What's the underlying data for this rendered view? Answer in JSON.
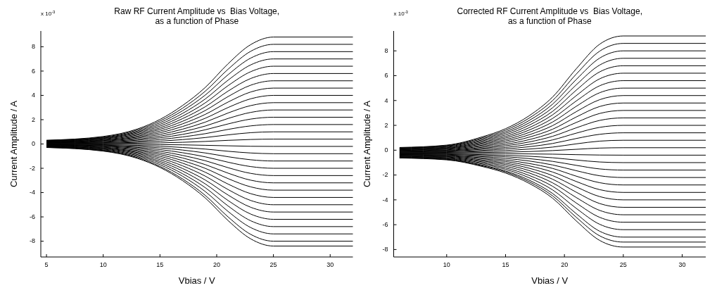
{
  "chart_data": [
    {
      "type": "line",
      "title": "Raw RF Current Amplitude vs  Bias Voltage,\nas a function of Phase",
      "xlabel": "Vbias / V",
      "ylabel": "Current Amplitude / A",
      "annotations": [
        "x 10$^{-3}$"
      ],
      "xlim": [
        4.5,
        32
      ],
      "ylim": [
        -9.3,
        9.3
      ],
      "xticks": [
        5,
        10,
        15,
        20,
        25,
        30
      ],
      "yticks": [
        -8,
        -6,
        -4,
        -2,
        0,
        2,
        4,
        6,
        8
      ],
      "line_style": "solid",
      "x": [
        5,
        10,
        13,
        15,
        17,
        19,
        21,
        23,
        25,
        32
      ],
      "series": [
        {
          "color": "#000000",
          "values": [
            0.31,
            0.62,
            1.23,
            2.02,
            3.17,
            4.66,
            6.6,
            8.18,
            8.8,
            8.8
          ]
        },
        {
          "color": "#000000",
          "values": [
            0.29,
            0.57,
            1.15,
            1.89,
            2.95,
            4.35,
            6.15,
            7.63,
            8.2,
            8.2
          ]
        },
        {
          "color": "#000000",
          "values": [
            0.27,
            0.53,
            1.06,
            1.75,
            2.74,
            4.03,
            5.7,
            7.07,
            7.6,
            7.6
          ]
        },
        {
          "color": "#000000",
          "values": [
            0.25,
            0.49,
            0.98,
            1.61,
            2.52,
            3.71,
            5.25,
            6.51,
            7.0,
            7.0
          ]
        },
        {
          "color": "#000000",
          "values": [
            0.22,
            0.45,
            0.9,
            1.47,
            2.3,
            3.39,
            4.8,
            5.95,
            6.4,
            6.4
          ]
        },
        {
          "color": "#000000",
          "values": [
            0.2,
            0.41,
            0.81,
            1.33,
            2.09,
            3.07,
            4.35,
            5.39,
            5.8,
            5.8
          ]
        },
        {
          "color": "#000000",
          "values": [
            0.18,
            0.36,
            0.73,
            1.2,
            1.87,
            2.76,
            3.9,
            4.84,
            5.2,
            5.2
          ]
        },
        {
          "color": "#000000",
          "values": [
            0.16,
            0.32,
            0.64,
            1.06,
            1.66,
            2.44,
            3.45,
            4.28,
            4.6,
            4.6
          ]
        },
        {
          "color": "#000000",
          "values": [
            0.14,
            0.28,
            0.56,
            0.92,
            1.44,
            2.12,
            3.0,
            3.72,
            4.0,
            4.0
          ]
        },
        {
          "color": "#000000",
          "values": [
            0.12,
            0.24,
            0.48,
            0.78,
            1.22,
            1.8,
            2.55,
            3.16,
            3.4,
            3.4
          ]
        },
        {
          "color": "#000000",
          "values": [
            0.1,
            0.2,
            0.39,
            0.64,
            1.01,
            1.48,
            2.1,
            2.6,
            2.8,
            2.8
          ]
        },
        {
          "color": "#000000",
          "values": [
            0.08,
            0.15,
            0.31,
            0.51,
            0.79,
            1.17,
            1.65,
            2.05,
            2.2,
            2.2
          ]
        },
        {
          "color": "#000000",
          "values": [
            0.06,
            0.11,
            0.22,
            0.37,
            0.58,
            0.85,
            1.2,
            1.49,
            1.6,
            1.6
          ]
        },
        {
          "color": "#000000",
          "values": [
            0.04,
            0.07,
            0.14,
            0.23,
            0.36,
            0.53,
            0.75,
            0.93,
            1.0,
            1.0
          ]
        },
        {
          "color": "#000000",
          "values": [
            0.01,
            0.03,
            0.06,
            0.09,
            0.14,
            0.21,
            0.3,
            0.37,
            0.4,
            0.4
          ]
        },
        {
          "color": "#000000",
          "values": [
            -0.01,
            -0.01,
            -0.03,
            -0.05,
            -0.07,
            -0.11,
            -0.15,
            -0.19,
            -0.2,
            -0.2
          ]
        },
        {
          "color": "#000000",
          "values": [
            -0.03,
            -0.06,
            -0.11,
            -0.18,
            -0.29,
            -0.42,
            -0.6,
            -0.74,
            -0.8,
            -0.8
          ]
        },
        {
          "color": "#000000",
          "values": [
            -0.05,
            -0.1,
            -0.2,
            -0.32,
            -0.5,
            -0.74,
            -1.05,
            -1.3,
            -1.4,
            -1.4
          ]
        },
        {
          "color": "#000000",
          "values": [
            -0.07,
            -0.14,
            -0.28,
            -0.46,
            -0.72,
            -1.06,
            -1.5,
            -1.86,
            -2.0,
            -2.0
          ]
        },
        {
          "color": "#000000",
          "values": [
            -0.09,
            -0.18,
            -0.36,
            -0.6,
            -0.94,
            -1.38,
            -1.95,
            -2.42,
            -2.6,
            -2.6
          ]
        },
        {
          "color": "#000000",
          "values": [
            -0.11,
            -0.22,
            -0.45,
            -0.74,
            -1.15,
            -1.7,
            -2.4,
            -2.98,
            -3.2,
            -3.2
          ]
        },
        {
          "color": "#000000",
          "values": [
            -0.13,
            -0.27,
            -0.53,
            -0.87,
            -1.37,
            -2.01,
            -2.85,
            -3.53,
            -3.8,
            -3.8
          ]
        },
        {
          "color": "#000000",
          "values": [
            -0.15,
            -0.31,
            -0.62,
            -1.01,
            -1.58,
            -2.33,
            -3.3,
            -4.09,
            -4.4,
            -4.4
          ]
        },
        {
          "color": "#000000",
          "values": [
            -0.18,
            -0.35,
            -0.7,
            -1.15,
            -1.8,
            -2.65,
            -3.75,
            -4.65,
            -5.0,
            -5.0
          ]
        },
        {
          "color": "#000000",
          "values": [
            -0.2,
            -0.39,
            -0.78,
            -1.29,
            -2.02,
            -2.97,
            -4.2,
            -5.21,
            -5.6,
            -5.6
          ]
        },
        {
          "color": "#000000",
          "values": [
            -0.22,
            -0.43,
            -0.87,
            -1.43,
            -2.23,
            -3.29,
            -4.65,
            -5.77,
            -6.2,
            -6.2
          ]
        },
        {
          "color": "#000000",
          "values": [
            -0.24,
            -0.48,
            -0.95,
            -1.56,
            -2.45,
            -3.6,
            -5.1,
            -6.32,
            -6.8,
            -6.8
          ]
        },
        {
          "color": "#000000",
          "values": [
            -0.26,
            -0.52,
            -1.04,
            -1.7,
            -2.66,
            -3.92,
            -5.55,
            -6.88,
            -7.4,
            -7.4
          ]
        },
        {
          "color": "#000000",
          "values": [
            -0.28,
            -0.56,
            -1.12,
            -1.84,
            -2.88,
            -4.24,
            -6.0,
            -7.44,
            -8.0,
            -8.0
          ]
        },
        {
          "color": "#000000",
          "values": [
            -0.29,
            -0.59,
            -1.18,
            -1.93,
            -3.02,
            -4.45,
            -6.3,
            -7.81,
            -8.4,
            -8.4
          ]
        }
      ]
    },
    {
      "type": "line",
      "title": "Corrected RF Current Amplitude vs  Bias Voltage,\nas a function of Phase",
      "xlabel": "Vbias / V",
      "ylabel": "Current Amplitude / A",
      "annotations": [
        "x 10$^{-3}$"
      ],
      "xlim": [
        5.5,
        32
      ],
      "ylim": [
        -8.6,
        9.6
      ],
      "xticks": [
        10,
        15,
        20,
        25,
        30
      ],
      "yticks": [
        -8,
        -6,
        -4,
        -2,
        0,
        2,
        4,
        6,
        8
      ],
      "line_style": "solid",
      "x": [
        6,
        10,
        13,
        15,
        17,
        19,
        21,
        23,
        25,
        32
      ],
      "series": [
        {
          "color": "#000000",
          "values": [
            0.22,
            0.41,
            1.07,
            1.73,
            2.77,
            4.29,
            6.55,
            8.54,
            9.2,
            9.2
          ]
        },
        {
          "color": "#000000",
          "values": [
            0.19,
            0.37,
            0.99,
            1.61,
            2.58,
            4.0,
            6.12,
            7.98,
            8.6,
            8.6
          ]
        },
        {
          "color": "#000000",
          "values": [
            0.16,
            0.33,
            0.91,
            1.48,
            2.39,
            3.71,
            5.69,
            7.42,
            8.0,
            8.0
          ]
        },
        {
          "color": "#000000",
          "values": [
            0.13,
            0.29,
            0.82,
            1.36,
            2.2,
            3.42,
            5.26,
            6.86,
            7.4,
            7.4
          ]
        },
        {
          "color": "#000000",
          "values": [
            0.1,
            0.24,
            0.74,
            1.23,
            2.01,
            3.13,
            4.83,
            6.31,
            6.8,
            6.8
          ]
        },
        {
          "color": "#000000",
          "values": [
            0.07,
            0.2,
            0.65,
            1.1,
            1.81,
            2.85,
            4.39,
            5.75,
            6.2,
            6.2
          ]
        },
        {
          "color": "#000000",
          "values": [
            0.04,
            0.16,
            0.57,
            0.98,
            1.62,
            2.56,
            3.96,
            5.19,
            5.6,
            5.6
          ]
        },
        {
          "color": "#000000",
          "values": [
            0.01,
            0.12,
            0.49,
            0.85,
            1.43,
            2.27,
            3.53,
            4.63,
            5.0,
            5.0
          ]
        },
        {
          "color": "#000000",
          "values": [
            -0.02,
            0.08,
            0.4,
            0.73,
            1.24,
            1.98,
            3.1,
            4.07,
            4.4,
            4.4
          ]
        },
        {
          "color": "#000000",
          "values": [
            -0.05,
            0.03,
            0.32,
            0.6,
            1.05,
            1.69,
            2.67,
            3.52,
            3.8,
            3.8
          ]
        },
        {
          "color": "#000000",
          "values": [
            -0.08,
            -0.01,
            0.23,
            0.47,
            0.85,
            1.41,
            2.23,
            2.96,
            3.2,
            3.2
          ]
        },
        {
          "color": "#000000",
          "values": [
            -0.11,
            -0.05,
            0.15,
            0.35,
            0.66,
            1.12,
            1.8,
            2.4,
            2.6,
            2.6
          ]
        },
        {
          "color": "#000000",
          "values": [
            -0.14,
            -0.09,
            0.07,
            0.22,
            0.47,
            0.83,
            1.37,
            1.84,
            2.0,
            2.0
          ]
        },
        {
          "color": "#000000",
          "values": [
            -0.17,
            -0.13,
            -0.02,
            0.1,
            0.28,
            0.54,
            0.94,
            1.28,
            1.4,
            1.4
          ]
        },
        {
          "color": "#000000",
          "values": [
            -0.2,
            -0.18,
            -0.1,
            -0.03,
            0.09,
            0.25,
            0.51,
            0.73,
            0.8,
            0.8
          ]
        },
        {
          "color": "#000000",
          "values": [
            -0.23,
            -0.22,
            -0.19,
            -0.16,
            -0.11,
            -0.03,
            0.07,
            0.17,
            0.2,
            0.2
          ]
        },
        {
          "color": "#000000",
          "values": [
            -0.26,
            -0.26,
            -0.27,
            -0.28,
            -0.3,
            -0.32,
            -0.36,
            -0.39,
            -0.4,
            -0.4
          ]
        },
        {
          "color": "#000000",
          "values": [
            -0.29,
            -0.3,
            -0.36,
            -0.41,
            -0.49,
            -0.61,
            -0.79,
            -0.95,
            -1.0,
            -1.0
          ]
        },
        {
          "color": "#000000",
          "values": [
            -0.32,
            -0.34,
            -0.44,
            -0.53,
            -0.68,
            -0.9,
            -1.22,
            -1.51,
            -1.6,
            -1.6
          ]
        },
        {
          "color": "#000000",
          "values": [
            -0.35,
            -0.39,
            -0.52,
            -0.66,
            -0.87,
            -1.19,
            -1.65,
            -2.06,
            -2.2,
            -2.2
          ]
        },
        {
          "color": "#000000",
          "values": [
            -0.38,
            -0.43,
            -0.61,
            -0.79,
            -1.07,
            -1.47,
            -2.09,
            -2.62,
            -2.8,
            -2.8
          ]
        },
        {
          "color": "#000000",
          "values": [
            -0.41,
            -0.47,
            -0.69,
            -0.91,
            -1.26,
            -1.76,
            -2.52,
            -3.18,
            -3.4,
            -3.4
          ]
        },
        {
          "color": "#000000",
          "values": [
            -0.44,
            -0.51,
            -0.78,
            -1.04,
            -1.45,
            -2.05,
            -2.95,
            -3.74,
            -4.0,
            -4.0
          ]
        },
        {
          "color": "#000000",
          "values": [
            -0.47,
            -0.55,
            -0.86,
            -1.16,
            -1.64,
            -2.34,
            -3.38,
            -4.3,
            -4.6,
            -4.6
          ]
        },
        {
          "color": "#000000",
          "values": [
            -0.5,
            -0.6,
            -0.94,
            -1.29,
            -1.83,
            -2.63,
            -3.81,
            -4.85,
            -5.2,
            -5.2
          ]
        },
        {
          "color": "#000000",
          "values": [
            -0.53,
            -0.64,
            -1.03,
            -1.42,
            -2.03,
            -2.91,
            -4.25,
            -5.41,
            -5.8,
            -5.8
          ]
        },
        {
          "color": "#000000",
          "values": [
            -0.56,
            -0.68,
            -1.11,
            -1.54,
            -2.22,
            -3.2,
            -4.68,
            -5.97,
            -6.4,
            -6.4
          ]
        },
        {
          "color": "#000000",
          "values": [
            -0.59,
            -0.72,
            -1.2,
            -1.67,
            -2.41,
            -3.49,
            -5.11,
            -6.53,
            -7.0,
            -7.0
          ]
        },
        {
          "color": "#000000",
          "values": [
            -0.61,
            -0.75,
            -1.25,
            -1.75,
            -2.54,
            -3.68,
            -5.4,
            -6.9,
            -7.4,
            -7.4
          ]
        },
        {
          "color": "#000000",
          "values": [
            -0.63,
            -0.78,
            -1.31,
            -1.84,
            -2.67,
            -3.87,
            -5.69,
            -7.27,
            -7.8,
            -7.8
          ]
        }
      ]
    }
  ]
}
